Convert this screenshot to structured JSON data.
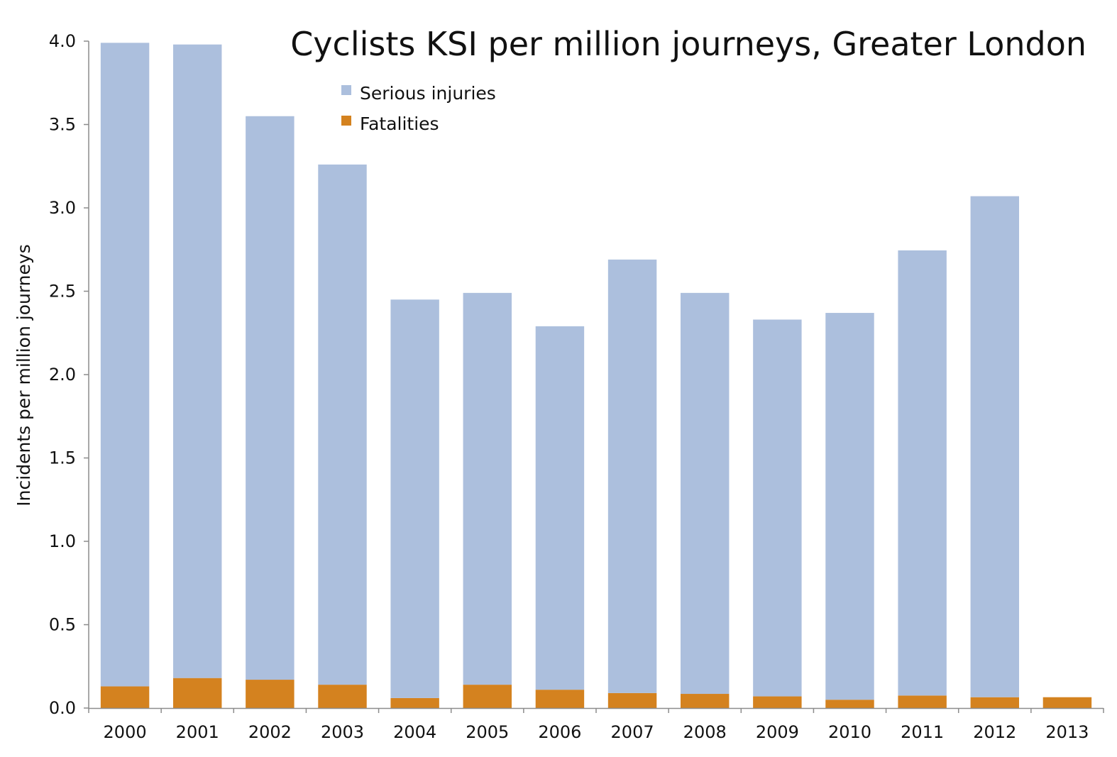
{
  "chart_data": {
    "type": "bar",
    "stacked": true,
    "title": "Cyclists KSI per million journeys, Greater London",
    "xlabel": "",
    "ylabel": "Incidents per million journeys",
    "ylim": [
      0,
      4.0
    ],
    "yticks": [
      0.0,
      0.5,
      1.0,
      1.5,
      2.0,
      2.5,
      3.0,
      3.5,
      4.0
    ],
    "ytick_labels": [
      "0.0",
      "0.5",
      "1.0",
      "1.5",
      "2.0",
      "2.5",
      "3.0",
      "3.5",
      "4.0"
    ],
    "grid": false,
    "legend_position": "top-center",
    "categories": [
      "2000",
      "2001",
      "2002",
      "2003",
      "2004",
      "2005",
      "2006",
      "2007",
      "2008",
      "2009",
      "2010",
      "2011",
      "2012",
      "2013"
    ],
    "series": [
      {
        "name": "Fatalities",
        "color": "#D4821F",
        "values": [
          0.13,
          0.18,
          0.17,
          0.14,
          0.06,
          0.14,
          0.11,
          0.09,
          0.085,
          0.07,
          0.05,
          0.075,
          0.065,
          0.065
        ]
      },
      {
        "name": "Serious injuries",
        "color": "#ACBFDD",
        "values": [
          3.86,
          3.8,
          3.38,
          3.12,
          2.39,
          2.35,
          2.18,
          2.6,
          2.405,
          2.26,
          2.32,
          2.67,
          3.005,
          0
        ]
      }
    ],
    "legend_order": [
      "Serious injuries",
      "Fatalities"
    ]
  }
}
